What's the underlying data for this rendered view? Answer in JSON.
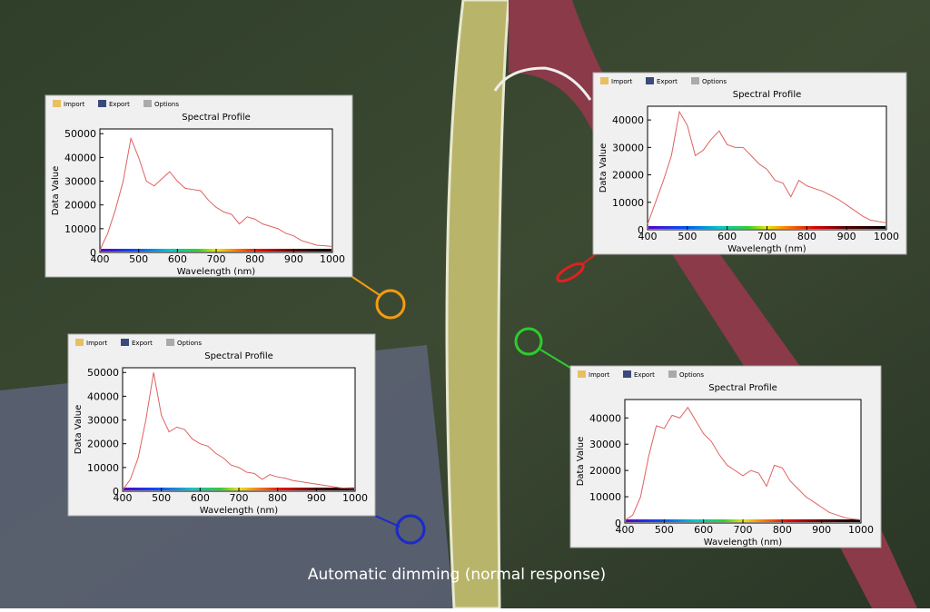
{
  "toolbar": [
    "Import",
    "Export",
    "Options"
  ],
  "caption": "Automatic dimming (normal response)",
  "chart_data": [
    {
      "type": "line",
      "title": "Spectral Profile",
      "x_label": "Wavelength (nm)",
      "y_label": "Data Value",
      "color": "#e06060",
      "x": [
        400,
        420,
        440,
        460,
        480,
        500,
        520,
        540,
        560,
        580,
        600,
        620,
        640,
        660,
        680,
        700,
        720,
        740,
        760,
        780,
        800,
        820,
        840,
        860,
        880,
        900,
        920,
        940,
        960,
        980,
        1000
      ],
      "values": [
        1000,
        8000,
        18000,
        30000,
        48000,
        40000,
        30000,
        28000,
        31000,
        34000,
        30000,
        27000,
        26500,
        26000,
        22000,
        19000,
        17000,
        16000,
        12000,
        15000,
        14000,
        12000,
        11000,
        10000,
        8000,
        7000,
        5000,
        4000,
        3000,
        2800,
        2500
      ],
      "xlim": [
        400,
        1000
      ],
      "xticks": [
        400,
        500,
        600,
        700,
        800,
        900,
        1000
      ],
      "ylim": [
        0,
        52000
      ],
      "yticks": [
        0,
        10000,
        20000,
        30000,
        40000,
        50000
      ]
    },
    {
      "type": "line",
      "title": "Spectral Profile",
      "x_label": "Wavelength (nm)",
      "y_label": "Data Value",
      "color": "#e06060",
      "x": [
        400,
        420,
        440,
        460,
        480,
        500,
        520,
        540,
        560,
        580,
        600,
        620,
        640,
        660,
        680,
        700,
        720,
        740,
        760,
        780,
        800,
        820,
        840,
        860,
        880,
        900,
        920,
        940,
        960,
        980,
        1000
      ],
      "values": [
        2000,
        10000,
        18000,
        27000,
        43000,
        38000,
        27000,
        29000,
        33000,
        36000,
        31000,
        30000,
        30000,
        27000,
        24000,
        22000,
        18000,
        17000,
        12000,
        18000,
        16000,
        15000,
        14000,
        12500,
        11000,
        9000,
        7000,
        5000,
        3500,
        3000,
        2500
      ],
      "xlim": [
        400,
        1000
      ],
      "xticks": [
        400,
        500,
        600,
        700,
        800,
        900,
        1000
      ],
      "ylim": [
        0,
        45000
      ],
      "yticks": [
        0,
        10000,
        20000,
        30000,
        40000
      ]
    },
    {
      "type": "line",
      "title": "Spectral Profile",
      "x_label": "Wavelength (nm)",
      "y_label": "Data Value",
      "color": "#e06060",
      "x": [
        400,
        420,
        440,
        460,
        480,
        500,
        520,
        540,
        560,
        580,
        600,
        620,
        640,
        660,
        680,
        700,
        720,
        740,
        760,
        780,
        800,
        820,
        840,
        860,
        880,
        900,
        920,
        940,
        960,
        980,
        1000
      ],
      "values": [
        500,
        5000,
        14000,
        30000,
        50000,
        32000,
        25000,
        27000,
        26000,
        22000,
        20000,
        19000,
        16000,
        14000,
        11000,
        10000,
        8000,
        7500,
        5000,
        7000,
        6000,
        5500,
        4500,
        4000,
        3500,
        3000,
        2500,
        2000,
        1500,
        1200,
        1000
      ],
      "xlim": [
        400,
        1000
      ],
      "xticks": [
        400,
        500,
        600,
        700,
        800,
        900,
        1000
      ],
      "ylim": [
        0,
        52000
      ],
      "yticks": [
        0,
        10000,
        20000,
        30000,
        40000,
        50000
      ]
    },
    {
      "type": "line",
      "title": "Spectral Profile",
      "x_label": "Wavelength (nm)",
      "y_label": "Data Value",
      "color": "#e06060",
      "x": [
        400,
        420,
        440,
        460,
        480,
        500,
        520,
        540,
        560,
        580,
        600,
        620,
        640,
        660,
        680,
        700,
        720,
        740,
        760,
        780,
        800,
        820,
        840,
        860,
        880,
        900,
        920,
        940,
        960,
        980,
        1000
      ],
      "values": [
        1000,
        3000,
        10000,
        25000,
        37000,
        36000,
        41000,
        40000,
        44000,
        39000,
        34000,
        31000,
        26000,
        22000,
        20000,
        18000,
        20000,
        19000,
        14000,
        22000,
        21000,
        16000,
        13000,
        10000,
        8000,
        6000,
        4000,
        3000,
        2000,
        1500,
        1200
      ],
      "xlim": [
        400,
        1000
      ],
      "xticks": [
        400,
        500,
        600,
        700,
        800,
        900,
        1000
      ],
      "ylim": [
        0,
        47000
      ],
      "yticks": [
        0,
        10000,
        20000,
        30000,
        40000
      ]
    }
  ]
}
